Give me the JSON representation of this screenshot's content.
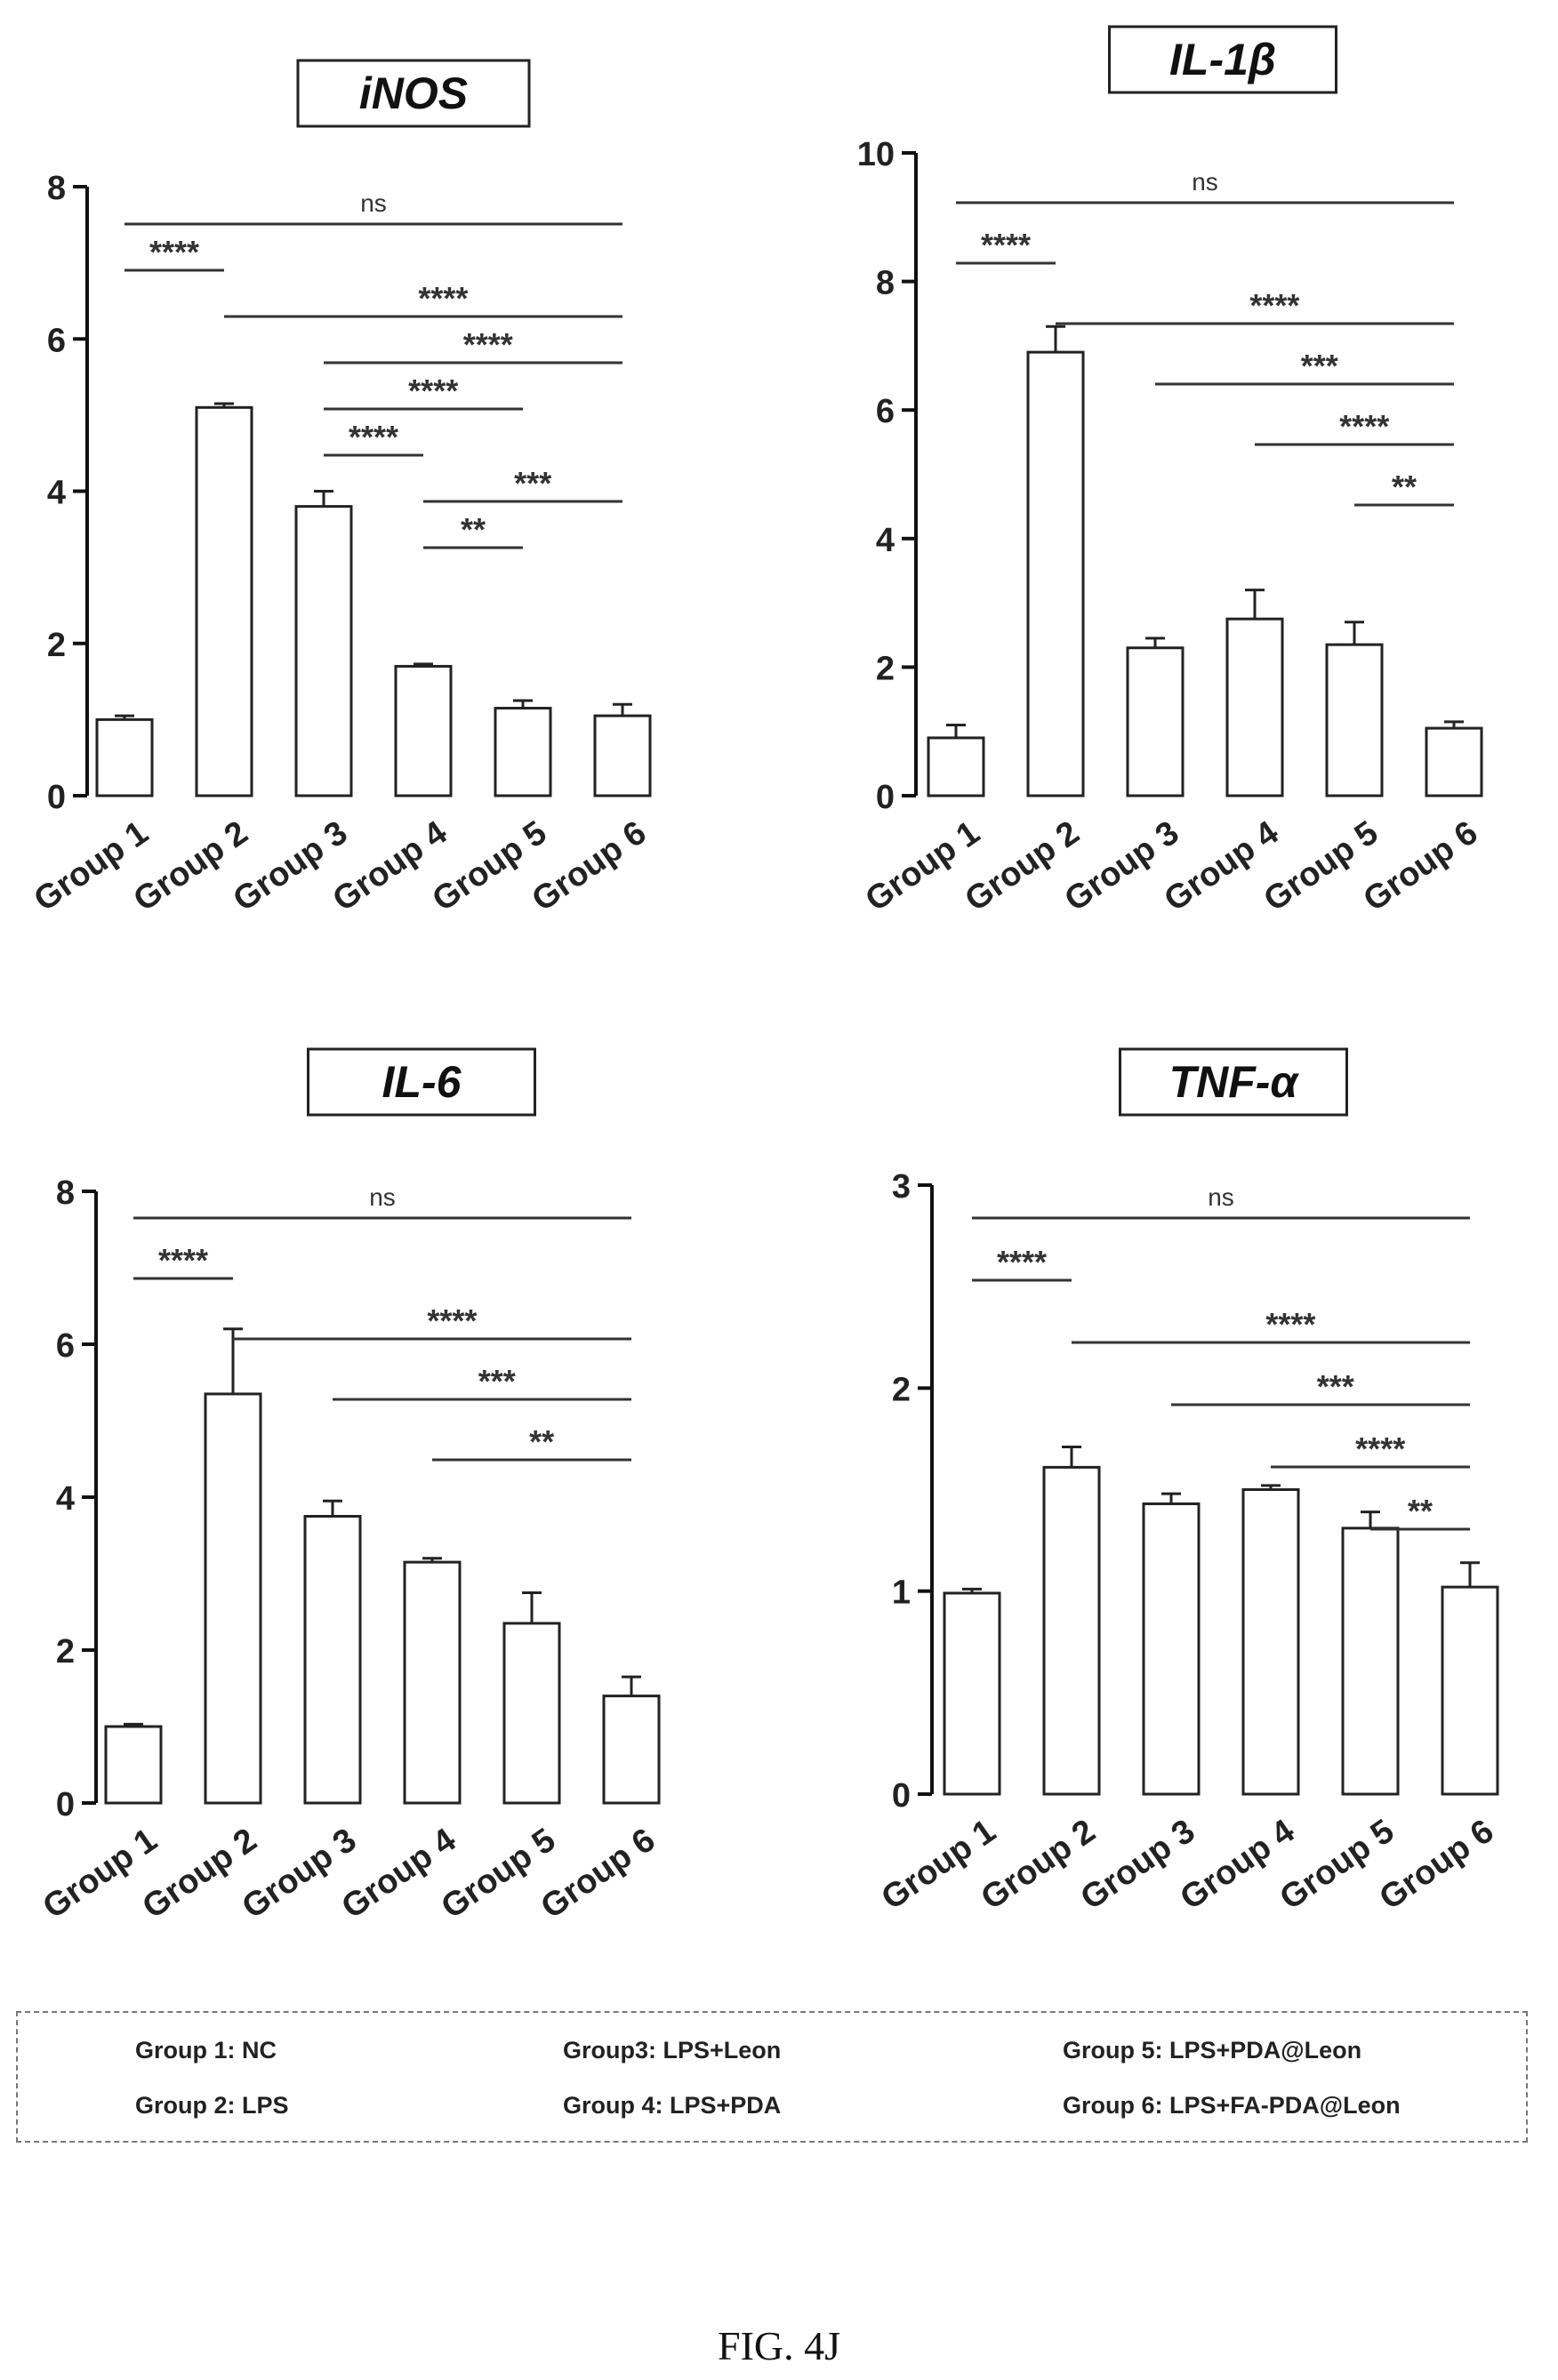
{
  "chart_data": [
    {
      "type": "bar",
      "title": "iNOS",
      "categories": [
        "Group 1",
        "Group 2",
        "Group 3",
        "Group 4",
        "Group 5",
        "Group 6"
      ],
      "values": [
        1.0,
        5.1,
        3.8,
        1.7,
        1.15,
        1.05
      ],
      "errors": [
        0.05,
        0.05,
        0.2,
        0.03,
        0.1,
        0.15
      ],
      "ylim": [
        0,
        8
      ],
      "yticks": [
        0,
        2,
        4,
        6,
        8
      ],
      "xlabel": "",
      "ylabel": "",
      "significance": [
        {
          "from": 1,
          "to": 6,
          "label": "ns"
        },
        {
          "from": 1,
          "to": 2,
          "label": "****"
        },
        {
          "from": 2,
          "to": 6,
          "label": "****"
        },
        {
          "from": 3,
          "to": 6,
          "label": "****"
        },
        {
          "from": 3,
          "to": 5,
          "label": "****"
        },
        {
          "from": 3,
          "to": 4,
          "label": "****"
        },
        {
          "from": 4,
          "to": 6,
          "label": "***"
        },
        {
          "from": 4,
          "to": 5,
          "label": "**"
        }
      ]
    },
    {
      "type": "bar",
      "title": "IL-1β",
      "categories": [
        "Group 1",
        "Group 2",
        "Group 3",
        "Group 4",
        "Group 5",
        "Group 6"
      ],
      "values": [
        0.9,
        6.9,
        2.3,
        2.75,
        2.35,
        1.05
      ],
      "errors": [
        0.2,
        0.4,
        0.15,
        0.45,
        0.35,
        0.1
      ],
      "ylim": [
        0,
        10
      ],
      "yticks": [
        0,
        2,
        4,
        6,
        8,
        10
      ],
      "xlabel": "",
      "ylabel": "",
      "significance": [
        {
          "from": 1,
          "to": 6,
          "label": "ns"
        },
        {
          "from": 1,
          "to": 2,
          "label": "****"
        },
        {
          "from": 2,
          "to": 6,
          "label": "****"
        },
        {
          "from": 3,
          "to": 6,
          "label": "***"
        },
        {
          "from": 4,
          "to": 6,
          "label": "****"
        },
        {
          "from": 5,
          "to": 6,
          "label": "**"
        }
      ]
    },
    {
      "type": "bar",
      "title": "IL-6",
      "categories": [
        "Group 1",
        "Group 2",
        "Group 3",
        "Group 4",
        "Group 5",
        "Group 6"
      ],
      "values": [
        1.0,
        5.35,
        3.75,
        3.15,
        2.35,
        1.4
      ],
      "errors": [
        0.03,
        0.85,
        0.2,
        0.05,
        0.4,
        0.25
      ],
      "ylim": [
        0,
        8
      ],
      "yticks": [
        0,
        2,
        4,
        6,
        8
      ],
      "xlabel": "",
      "ylabel": "",
      "significance": [
        {
          "from": 1,
          "to": 6,
          "label": "ns"
        },
        {
          "from": 1,
          "to": 2,
          "label": "****"
        },
        {
          "from": 2,
          "to": 6,
          "label": "****"
        },
        {
          "from": 3,
          "to": 6,
          "label": "***"
        },
        {
          "from": 4,
          "to": 6,
          "label": "**"
        }
      ]
    },
    {
      "type": "bar",
      "title": "TNF-α",
      "categories": [
        "Group 1",
        "Group 2",
        "Group 3",
        "Group 4",
        "Group 5",
        "Group 6"
      ],
      "values": [
        0.99,
        1.61,
        1.43,
        1.5,
        1.31,
        1.02
      ],
      "errors": [
        0.02,
        0.1,
        0.05,
        0.02,
        0.08,
        0.12
      ],
      "ylim": [
        0,
        3
      ],
      "yticks": [
        0,
        1,
        2,
        3
      ],
      "xlabel": "",
      "ylabel": "",
      "significance": [
        {
          "from": 1,
          "to": 6,
          "label": "ns"
        },
        {
          "from": 1,
          "to": 2,
          "label": "****"
        },
        {
          "from": 2,
          "to": 6,
          "label": "****"
        },
        {
          "from": 3,
          "to": 6,
          "label": "***"
        },
        {
          "from": 4,
          "to": 6,
          "label": "****"
        },
        {
          "from": 5,
          "to": 6,
          "label": "**"
        }
      ]
    }
  ],
  "legend": {
    "g1": "Group 1: NC",
    "g2": "Group 2: LPS",
    "g3": "Group3: LPS+Leon",
    "g4": "Group 4: LPS+PDA",
    "g5": "Group 5: LPS+PDA@Leon",
    "g6": "Group 6: LPS+FA-PDA@Leon"
  },
  "caption": "FIG. 4J"
}
